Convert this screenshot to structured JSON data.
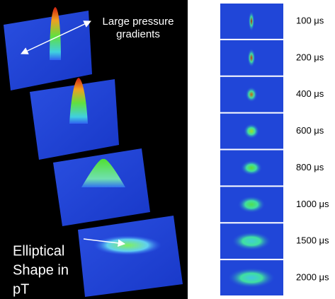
{
  "left_panel": {
    "annotations": [
      {
        "lines": [
          "Large pressure",
          "gradients"
        ]
      },
      {
        "lines": [
          "Elliptical",
          "Shape in",
          "pT"
        ]
      }
    ]
  },
  "right_panel": {
    "frames": [
      {
        "label": "100 μs"
      },
      {
        "label": "200 μs"
      },
      {
        "label": "400 μs"
      },
      {
        "label": "600 μs"
      },
      {
        "label": "800 μs"
      },
      {
        "label": "1000 μs"
      },
      {
        "label": "1500 μs"
      },
      {
        "label": "2000 μs"
      }
    ]
  }
}
